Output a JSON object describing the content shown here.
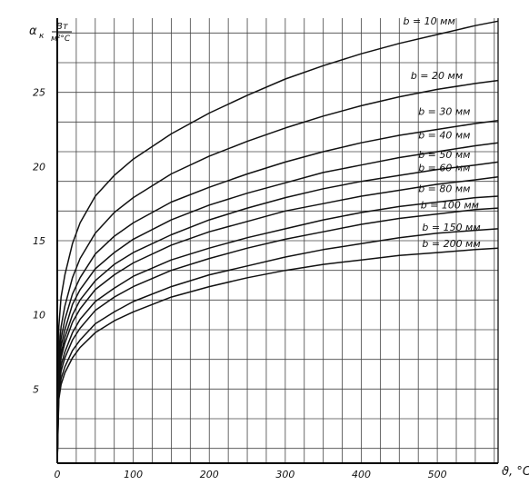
{
  "chart_data": {
    "type": "line",
    "xlabel": "ϑ, °C",
    "ylabel": "α",
    "ylabel_sub": "к",
    "ylabel_unit_num": "Вт",
    "ylabel_unit_den": "м²°C",
    "xlim": [
      0,
      580
    ],
    "ylim": [
      0,
      30
    ],
    "x_ticks": [
      0,
      100,
      200,
      300,
      400,
      500
    ],
    "y_ticks": [
      5,
      10,
      15,
      20,
      25
    ],
    "grid": true,
    "x": [
      0,
      2,
      5,
      10,
      20,
      30,
      50,
      75,
      100,
      150,
      200,
      250,
      300,
      350,
      400,
      450,
      500,
      550,
      580
    ],
    "series": [
      {
        "name": "b = 10 мм",
        "values": [
          0,
          9.2,
          11.2,
          12.7,
          14.8,
          16.2,
          18.0,
          19.4,
          20.5,
          22.2,
          23.6,
          24.8,
          25.9,
          26.8,
          27.6,
          28.3,
          28.9,
          29.5,
          29.8
        ]
      },
      {
        "name": "b = 20 мм",
        "values": [
          0,
          7.5,
          9.2,
          10.6,
          12.5,
          13.8,
          15.5,
          16.9,
          17.9,
          19.5,
          20.7,
          21.7,
          22.6,
          23.4,
          24.1,
          24.7,
          25.2,
          25.6,
          25.8
        ]
      },
      {
        "name": "b = 30 мм",
        "values": [
          0,
          6.8,
          8.4,
          9.7,
          11.4,
          12.5,
          14.1,
          15.3,
          16.2,
          17.6,
          18.6,
          19.5,
          20.3,
          21.0,
          21.6,
          22.1,
          22.5,
          22.9,
          23.1
        ]
      },
      {
        "name": "b = 40 мм",
        "values": [
          0,
          6.3,
          7.9,
          9.0,
          10.7,
          11.7,
          13.1,
          14.2,
          15.1,
          16.4,
          17.4,
          18.2,
          18.9,
          19.6,
          20.1,
          20.6,
          21.0,
          21.4,
          21.6
        ]
      },
      {
        "name": "b = 50 мм",
        "values": [
          0,
          6.0,
          7.4,
          8.5,
          10.0,
          11.0,
          12.3,
          13.4,
          14.2,
          15.4,
          16.4,
          17.2,
          17.9,
          18.5,
          19.0,
          19.4,
          19.8,
          20.1,
          20.3
        ]
      },
      {
        "name": "b = 60 мм",
        "values": [
          0,
          5.7,
          7.1,
          8.1,
          9.5,
          10.4,
          11.7,
          12.7,
          13.5,
          14.7,
          15.6,
          16.3,
          17.0,
          17.5,
          18.0,
          18.4,
          18.8,
          19.1,
          19.3
        ]
      },
      {
        "name": "b = 80 мм",
        "values": [
          0,
          5.3,
          6.6,
          7.5,
          8.8,
          9.7,
          10.9,
          11.8,
          12.6,
          13.7,
          14.5,
          15.2,
          15.8,
          16.4,
          16.9,
          17.3,
          17.6,
          17.9,
          18.0
        ]
      },
      {
        "name": "b = 100 мм",
        "values": [
          0,
          5.0,
          6.2,
          7.1,
          8.3,
          9.1,
          10.3,
          11.2,
          11.9,
          13.0,
          13.8,
          14.5,
          15.1,
          15.6,
          16.1,
          16.5,
          16.8,
          17.1,
          17.2
        ]
      },
      {
        "name": "b = 150 мм",
        "values": [
          0,
          4.6,
          5.7,
          6.5,
          7.6,
          8.3,
          9.4,
          10.2,
          10.9,
          11.9,
          12.7,
          13.3,
          13.9,
          14.4,
          14.8,
          15.2,
          15.5,
          15.7,
          15.8
        ]
      },
      {
        "name": "b = 200 мм",
        "values": [
          0,
          4.3,
          5.3,
          6.1,
          7.1,
          7.8,
          8.8,
          9.6,
          10.2,
          11.2,
          11.9,
          12.5,
          13.0,
          13.4,
          13.7,
          14.0,
          14.2,
          14.4,
          14.5
        ]
      }
    ],
    "labels": [
      {
        "text": "b = 10 мм",
        "x": 455,
        "y": 29.4
      },
      {
        "text": "b = 20 мм",
        "x": 465,
        "y": 25.7
      },
      {
        "text": "b = 30 мм",
        "x": 475,
        "y": 23.3
      },
      {
        "text": "b = 40 мм",
        "x": 475,
        "y": 21.7
      },
      {
        "text": "b = 50 мм",
        "x": 475,
        "y": 20.4
      },
      {
        "text": "b = 60 мм",
        "x": 475,
        "y": 19.5
      },
      {
        "text": "b = 80 мм",
        "x": 475,
        "y": 18.1
      },
      {
        "text": "b = 100 мм",
        "x": 478,
        "y": 17.0
      },
      {
        "text": "b = 150 мм",
        "x": 480,
        "y": 15.5
      },
      {
        "text": "b = 200 мм",
        "x": 480,
        "y": 14.4
      }
    ],
    "line_color": "#111111",
    "grid_color": "#444444",
    "axis_color": "#000000"
  }
}
